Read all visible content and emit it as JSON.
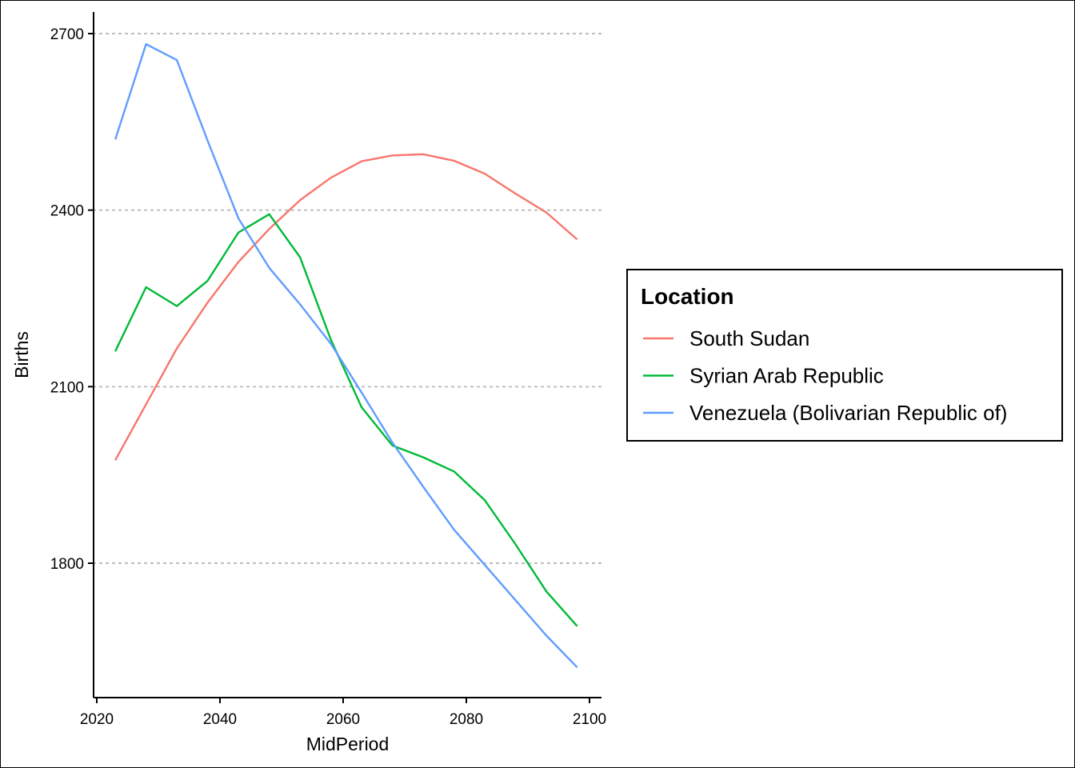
{
  "chart_data": {
    "type": "line",
    "xlabel": "MidPeriod",
    "ylabel": "Births",
    "xlim": [
      2020,
      2100
    ],
    "ylim": [
      1600,
      2700
    ],
    "x_ticks": [
      2020,
      2040,
      2060,
      2080,
      2100
    ],
    "y_ticks": [
      1800,
      2100,
      2400,
      2700
    ],
    "grid": "horizontal dotted at y ticks",
    "legend_placement": "right",
    "legend_title": "Location",
    "x": [
      2023,
      2028,
      2033,
      2038,
      2043,
      2048,
      2053,
      2058,
      2063,
      2068,
      2073,
      2078,
      2083,
      2088,
      2093,
      2098
    ],
    "series": [
      {
        "name": "South Sudan",
        "color": "#F8766D",
        "values": [
          1975,
          2070,
          2165,
          2243,
          2312,
          2368,
          2417,
          2455,
          2483,
          2493,
          2495,
          2484,
          2462,
          2428,
          2396,
          2350
        ]
      },
      {
        "name": "Syrian Arab Republic",
        "color": "#00BA38",
        "values": [
          2160,
          2269,
          2237,
          2280,
          2362,
          2393,
          2320,
          2180,
          2065,
          2000,
          1980,
          1956,
          1907,
          1832,
          1752,
          1693
        ]
      },
      {
        "name": "Venezuela (Bolivarian Republic of)",
        "color": "#619CFF",
        "values": [
          2520,
          2682,
          2655,
          2518,
          2386,
          2302,
          2240,
          2173,
          2090,
          2005,
          1930,
          1857,
          1797,
          1737,
          1677,
          1623
        ]
      }
    ]
  }
}
